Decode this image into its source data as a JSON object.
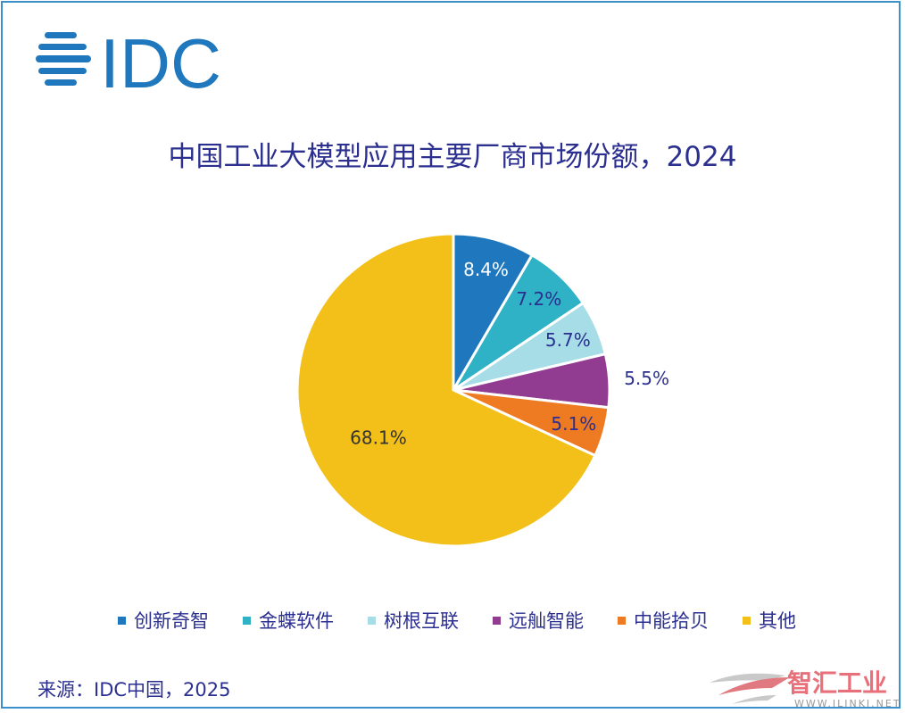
{
  "logo_text": "IDC",
  "chart_data": {
    "type": "pie",
    "title": "中国工业大模型应用主要厂商市场份额，2024",
    "categories": [
      "创新奇智",
      "金蝶软件",
      "树根互联",
      "远舢智能",
      "中能拾贝",
      "其他"
    ],
    "values": [
      8.4,
      7.2,
      5.7,
      5.5,
      5.1,
      68.1
    ],
    "labels": [
      "8.4%",
      "7.2%",
      "5.7%",
      "5.5%",
      "5.1%",
      "68.1%"
    ],
    "colors": [
      "#1f78bd",
      "#2fb1c6",
      "#a7dde6",
      "#913c90",
      "#ee7a22",
      "#f2c018"
    ],
    "label_colors": [
      "#ffffff",
      "#2b2f8f",
      "#2b2f8f",
      "#2b2f8f",
      "#2b2f8f",
      "#333333"
    ],
    "legend_position": "bottom"
  },
  "source": "来源：IDC中国，2025",
  "watermark": {
    "brand": "智汇工业",
    "url": "WWW.ILINKI.NET"
  }
}
